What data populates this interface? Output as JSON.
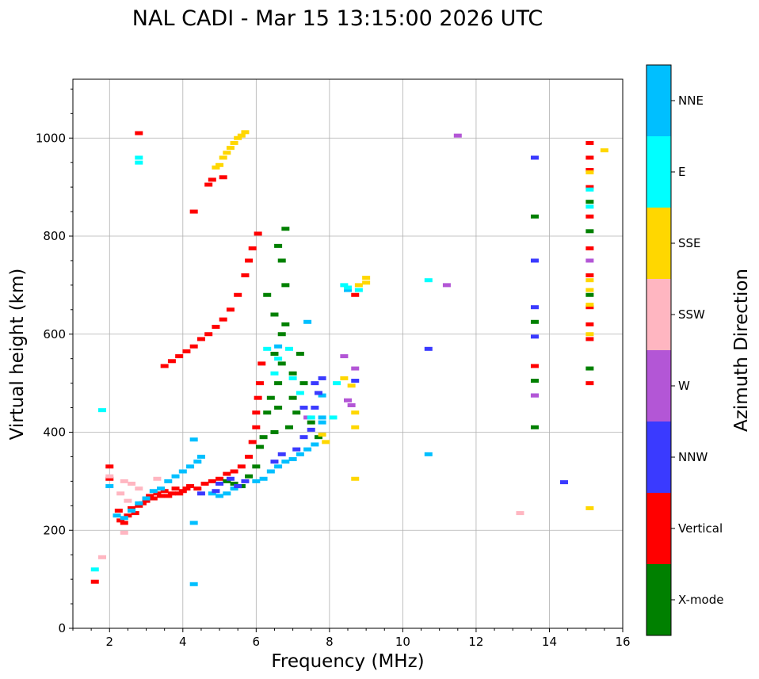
{
  "chart_data": {
    "type": "scatter",
    "title": "NAL CADI - Mar 15 13:15:00 2026 UTC",
    "xlabel": "Frequency (MHz)",
    "ylabel": "Virtual height (km)",
    "xlim": [
      1,
      16
    ],
    "ylim": [
      0,
      1120
    ],
    "xticks": [
      2,
      4,
      6,
      8,
      10,
      12,
      14,
      16
    ],
    "yticks": [
      0,
      200,
      400,
      600,
      800,
      1000
    ],
    "grid": true,
    "colorbar": {
      "label": "Azimuth Direction",
      "categories": [
        "X-mode",
        "Vertical",
        "NNW",
        "W",
        "SSW",
        "SSE",
        "E",
        "NNE"
      ],
      "colors": {
        "X-mode": "#008000",
        "Vertical": "#ff0000",
        "NNW": "#3a3aff",
        "W": "#b356d6",
        "SSW": "#ffb6c1",
        "SSE": "#ffd700",
        "E": "#00ffff",
        "NNE": "#00bfff"
      }
    },
    "series": [
      {
        "name": "Vertical",
        "color_key": "Vertical",
        "points": [
          [
            2.0,
            330
          ],
          [
            2.0,
            305
          ],
          [
            2.25,
            240
          ],
          [
            2.3,
            220
          ],
          [
            2.4,
            215
          ],
          [
            2.5,
            230
          ],
          [
            2.6,
            245
          ],
          [
            2.7,
            235
          ],
          [
            2.8,
            250
          ],
          [
            2.9,
            255
          ],
          [
            3.0,
            260
          ],
          [
            3.1,
            270
          ],
          [
            3.2,
            265
          ],
          [
            3.3,
            275
          ],
          [
            3.4,
            270
          ],
          [
            3.5,
            280
          ],
          [
            3.6,
            270
          ],
          [
            3.7,
            275
          ],
          [
            3.8,
            285
          ],
          [
            3.9,
            275
          ],
          [
            4.0,
            280
          ],
          [
            4.1,
            285
          ],
          [
            4.2,
            290
          ],
          [
            4.4,
            285
          ],
          [
            4.6,
            295
          ],
          [
            4.8,
            300
          ],
          [
            5.0,
            305
          ],
          [
            5.2,
            315
          ],
          [
            5.4,
            320
          ],
          [
            5.6,
            330
          ],
          [
            5.8,
            350
          ],
          [
            5.9,
            380
          ],
          [
            6.0,
            410
          ],
          [
            6.0,
            440
          ],
          [
            6.05,
            470
          ],
          [
            6.1,
            500
          ],
          [
            6.15,
            540
          ],
          [
            3.5,
            535
          ],
          [
            3.7,
            545
          ],
          [
            3.9,
            555
          ],
          [
            4.1,
            565
          ],
          [
            4.3,
            575
          ],
          [
            4.5,
            590
          ],
          [
            4.7,
            600
          ],
          [
            4.9,
            615
          ],
          [
            5.1,
            630
          ],
          [
            5.3,
            650
          ],
          [
            5.5,
            680
          ],
          [
            5.7,
            720
          ],
          [
            5.8,
            750
          ],
          [
            5.9,
            775
          ],
          [
            6.05,
            805
          ],
          [
            4.7,
            905
          ],
          [
            4.8,
            915
          ],
          [
            5.1,
            920
          ],
          [
            2.8,
            1010
          ],
          [
            4.3,
            850
          ],
          [
            8.7,
            680
          ],
          [
            15.1,
            990
          ],
          [
            15.1,
            960
          ],
          [
            15.1,
            935
          ],
          [
            15.1,
            900
          ],
          [
            15.1,
            840
          ],
          [
            15.1,
            775
          ],
          [
            15.1,
            720
          ],
          [
            15.1,
            655
          ],
          [
            15.1,
            620
          ],
          [
            15.1,
            590
          ],
          [
            15.1,
            500
          ],
          [
            13.6,
            535
          ],
          [
            1.6,
            95
          ]
        ]
      },
      {
        "name": "NNE",
        "color_key": "NNE",
        "points": [
          [
            2.2,
            230
          ],
          [
            2.4,
            225
          ],
          [
            2.6,
            240
          ],
          [
            2.8,
            255
          ],
          [
            3.0,
            265
          ],
          [
            3.2,
            280
          ],
          [
            3.4,
            285
          ],
          [
            3.6,
            300
          ],
          [
            3.8,
            310
          ],
          [
            4.0,
            320
          ],
          [
            4.2,
            330
          ],
          [
            4.4,
            340
          ],
          [
            4.3,
            385
          ],
          [
            4.5,
            350
          ],
          [
            4.8,
            275
          ],
          [
            5.0,
            270
          ],
          [
            5.2,
            275
          ],
          [
            5.4,
            285
          ],
          [
            5.6,
            290
          ],
          [
            6.0,
            300
          ],
          [
            6.2,
            305
          ],
          [
            6.4,
            320
          ],
          [
            6.6,
            330
          ],
          [
            6.8,
            340
          ],
          [
            7.0,
            345
          ],
          [
            7.2,
            355
          ],
          [
            7.4,
            365
          ],
          [
            7.6,
            375
          ],
          [
            7.8,
            475
          ],
          [
            7.8,
            430
          ],
          [
            7.8,
            420
          ],
          [
            4.3,
            90
          ],
          [
            4.3,
            215
          ],
          [
            6.6,
            575
          ],
          [
            7.4,
            625
          ],
          [
            8.5,
            690
          ],
          [
            10.7,
            355
          ],
          [
            2.0,
            290
          ]
        ]
      },
      {
        "name": "X-mode",
        "color_key": "X-mode",
        "points": [
          [
            5.2,
            300
          ],
          [
            5.4,
            295
          ],
          [
            5.6,
            290
          ],
          [
            5.8,
            310
          ],
          [
            6.0,
            330
          ],
          [
            6.1,
            370
          ],
          [
            6.2,
            390
          ],
          [
            6.3,
            440
          ],
          [
            6.4,
            470
          ],
          [
            6.5,
            560
          ],
          [
            6.5,
            400
          ],
          [
            6.6,
            450
          ],
          [
            6.6,
            500
          ],
          [
            6.7,
            540
          ],
          [
            6.7,
            600
          ],
          [
            6.8,
            620
          ],
          [
            6.8,
            700
          ],
          [
            6.7,
            750
          ],
          [
            6.8,
            815
          ],
          [
            6.6,
            780
          ],
          [
            7.0,
            520
          ],
          [
            7.0,
            470
          ],
          [
            7.1,
            440
          ],
          [
            7.2,
            560
          ],
          [
            7.3,
            500
          ],
          [
            6.9,
            410
          ],
          [
            7.5,
            420
          ],
          [
            7.7,
            390
          ],
          [
            6.3,
            680
          ],
          [
            6.5,
            640
          ],
          [
            13.6,
            840
          ],
          [
            13.6,
            625
          ],
          [
            13.6,
            505
          ],
          [
            13.6,
            410
          ],
          [
            15.1,
            870
          ],
          [
            15.1,
            810
          ],
          [
            15.1,
            680
          ],
          [
            15.1,
            530
          ]
        ]
      },
      {
        "name": "NNW",
        "color_key": "NNW",
        "points": [
          [
            4.9,
            280
          ],
          [
            5.0,
            295
          ],
          [
            5.3,
            305
          ],
          [
            5.5,
            290
          ],
          [
            5.7,
            300
          ],
          [
            6.5,
            340
          ],
          [
            6.7,
            355
          ],
          [
            7.1,
            365
          ],
          [
            7.3,
            390
          ],
          [
            7.5,
            405
          ],
          [
            7.6,
            450
          ],
          [
            7.7,
            480
          ],
          [
            7.8,
            510
          ],
          [
            7.6,
            500
          ],
          [
            7.3,
            450
          ],
          [
            8.7,
            505
          ],
          [
            10.7,
            570
          ],
          [
            13.6,
            960
          ],
          [
            13.6,
            750
          ],
          [
            13.6,
            655
          ],
          [
            13.6,
            595
          ],
          [
            13.6,
            475
          ],
          [
            14.4,
            298
          ],
          [
            4.5,
            275
          ]
        ]
      },
      {
        "name": "W",
        "color_key": "W",
        "points": [
          [
            8.4,
            555
          ],
          [
            8.5,
            465
          ],
          [
            8.6,
            455
          ],
          [
            8.7,
            530
          ],
          [
            7.4,
            430
          ],
          [
            11.2,
            700
          ],
          [
            11.5,
            1005
          ],
          [
            15.1,
            750
          ],
          [
            13.6,
            475
          ]
        ]
      },
      {
        "name": "SSW",
        "color_key": "SSW",
        "points": [
          [
            2.0,
            310
          ],
          [
            2.3,
            275
          ],
          [
            2.4,
            300
          ],
          [
            2.5,
            260
          ],
          [
            2.6,
            295
          ],
          [
            2.8,
            285
          ],
          [
            2.4,
            195
          ],
          [
            1.8,
            145
          ],
          [
            13.2,
            235
          ],
          [
            3.3,
            305
          ]
        ]
      },
      {
        "name": "SSE",
        "color_key": "SSE",
        "points": [
          [
            4.9,
            940
          ],
          [
            5.0,
            945
          ],
          [
            5.1,
            960
          ],
          [
            5.2,
            970
          ],
          [
            5.3,
            980
          ],
          [
            5.4,
            990
          ],
          [
            5.5,
            1000
          ],
          [
            5.6,
            1005
          ],
          [
            5.7,
            1012
          ],
          [
            8.4,
            510
          ],
          [
            8.6,
            495
          ],
          [
            8.7,
            440
          ],
          [
            8.7,
            410
          ],
          [
            8.8,
            700
          ],
          [
            9.0,
            715
          ],
          [
            9.0,
            705
          ],
          [
            7.8,
            395
          ],
          [
            7.9,
            380
          ],
          [
            8.7,
            305
          ],
          [
            15.1,
            710
          ],
          [
            15.1,
            690
          ],
          [
            15.1,
            660
          ],
          [
            15.1,
            600
          ],
          [
            15.1,
            930
          ],
          [
            15.1,
            245
          ],
          [
            15.5,
            975
          ]
        ]
      },
      {
        "name": "E",
        "color_key": "E",
        "points": [
          [
            2.8,
            950
          ],
          [
            2.8,
            960
          ],
          [
            6.3,
            570
          ],
          [
            6.5,
            520
          ],
          [
            6.6,
            550
          ],
          [
            6.9,
            570
          ],
          [
            7.0,
            510
          ],
          [
            7.2,
            480
          ],
          [
            7.5,
            430
          ],
          [
            8.1,
            430
          ],
          [
            8.4,
            700
          ],
          [
            8.5,
            695
          ],
          [
            8.8,
            690
          ],
          [
            8.2,
            500
          ],
          [
            10.7,
            710
          ],
          [
            15.1,
            895
          ],
          [
            15.1,
            860
          ],
          [
            1.6,
            120
          ],
          [
            1.8,
            445
          ]
        ]
      }
    ]
  }
}
